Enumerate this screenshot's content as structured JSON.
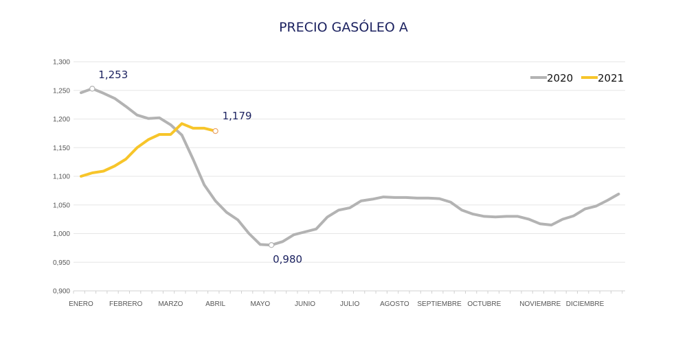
{
  "chart_data": {
    "type": "line",
    "title": "PRECIO GASÓLEO A",
    "xlabel": "",
    "ylabel": "",
    "ylim": [
      0.9,
      1.3
    ],
    "y_ticks": [
      "1,300",
      "1,250",
      "1,200",
      "1,150",
      "1,100",
      "1,050",
      "1,000",
      "0,950",
      "0,900"
    ],
    "y_tick_values": [
      1.3,
      1.25,
      1.2,
      1.15,
      1.1,
      1.05,
      1.0,
      0.95,
      0.9
    ],
    "x_ticks": [
      {
        "label": "ENERO",
        "week": 0
      },
      {
        "label": "FEBRERO",
        "week": 4
      },
      {
        "label": "MARZO",
        "week": 8
      },
      {
        "label": "ABRIL",
        "week": 12
      },
      {
        "label": "MAYO",
        "week": 16
      },
      {
        "label": "JUNIO",
        "week": 20
      },
      {
        "label": "JULIO",
        "week": 24
      },
      {
        "label": "AGOSTO",
        "week": 28
      },
      {
        "label": "SEPTIEMBRE",
        "week": 32
      },
      {
        "label": "OCTUBRE",
        "week": 36
      },
      {
        "label": "NOVIEMBRE",
        "week": 41
      },
      {
        "label": "DICIEMBRE",
        "week": 45
      }
    ],
    "grid": true,
    "legend_position": "top-right",
    "series": [
      {
        "name": "2020",
        "color": "#b3b3b3",
        "values": [
          1.246,
          1.253,
          1.245,
          1.236,
          1.222,
          1.207,
          1.201,
          1.202,
          1.19,
          1.172,
          1.13,
          1.085,
          1.057,
          1.037,
          1.024,
          1.0,
          0.981,
          0.98,
          0.986,
          0.998,
          1.003,
          1.008,
          1.029,
          1.041,
          1.045,
          1.057,
          1.06,
          1.064,
          1.063,
          1.063,
          1.062,
          1.062,
          1.061,
          1.055,
          1.041,
          1.034,
          1.03,
          1.029,
          1.03,
          1.03,
          1.025,
          1.017,
          1.015,
          1.025,
          1.031,
          1.043,
          1.048,
          1.058,
          1.069
        ]
      },
      {
        "name": "2021",
        "color": "#f7c52a",
        "values": [
          1.1,
          1.106,
          1.109,
          1.118,
          1.13,
          1.15,
          1.164,
          1.173,
          1.173,
          1.192,
          1.184,
          1.184,
          1.179
        ]
      }
    ],
    "annotations": [
      {
        "text": "1,253",
        "series": "2020",
        "week": 1
      },
      {
        "text": "0,980",
        "series": "2020",
        "week": 17
      },
      {
        "text": "1,179",
        "series": "2021",
        "week": 12
      }
    ]
  }
}
